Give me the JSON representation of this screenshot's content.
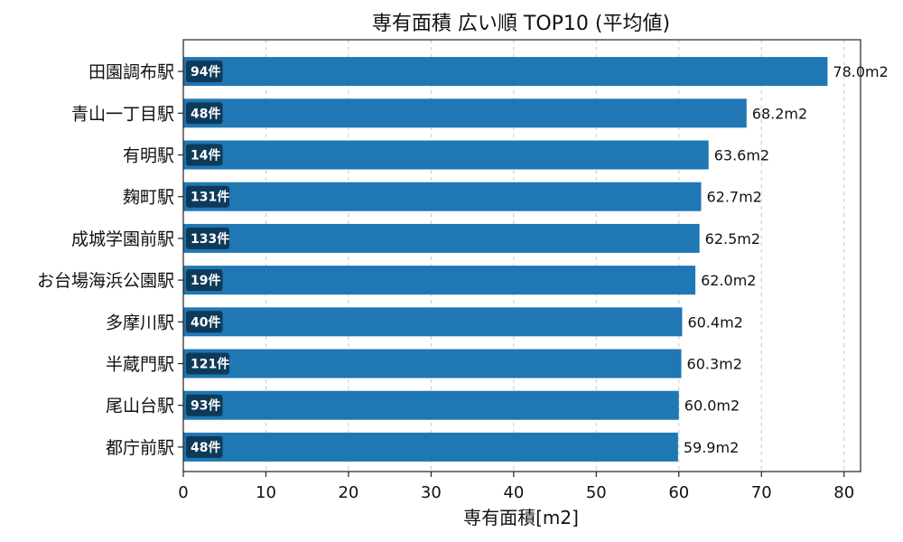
{
  "chart_data": {
    "type": "bar",
    "orientation": "horizontal",
    "title": "専有面積 広い順 TOP10 (平均値)",
    "xlabel": "専有面積[m2]",
    "ylabel": "",
    "xlim": [
      0,
      82
    ],
    "xticks": [
      0,
      10,
      20,
      30,
      40,
      50,
      60,
      70,
      80
    ],
    "grid": "x-dashed",
    "bar_color": "#1f77b4",
    "badge_color": "#0e3a5a",
    "categories": [
      "田園調布駅",
      "青山一丁目駅",
      "有明駅",
      "麹町駅",
      "成城学園前駅",
      "お台場海浜公園駅",
      "多摩川駅",
      "半蔵門駅",
      "尾山台駅",
      "都庁前駅"
    ],
    "values": [
      78.0,
      68.2,
      63.6,
      62.7,
      62.5,
      62.0,
      60.4,
      60.3,
      60.0,
      59.9
    ],
    "value_labels": [
      "78.0m2",
      "68.2m2",
      "63.6m2",
      "62.7m2",
      "62.5m2",
      "62.0m2",
      "60.4m2",
      "60.3m2",
      "60.0m2",
      "59.9m2"
    ],
    "counts": [
      "94件",
      "48件",
      "14件",
      "131件",
      "133件",
      "19件",
      "40件",
      "121件",
      "93件",
      "48件"
    ]
  }
}
